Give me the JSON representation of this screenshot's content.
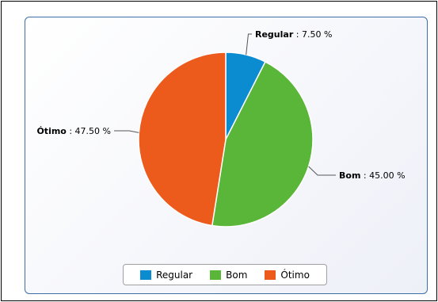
{
  "chart_data": {
    "type": "pie",
    "slices": [
      {
        "label": "Regular",
        "value": 7.5,
        "value_text": "7.50 %",
        "color": "#0b8bd0"
      },
      {
        "label": "Bom",
        "value": 45.0,
        "value_text": "45.00 %",
        "color": "#5ab638"
      },
      {
        "label": "Ótimo",
        "value": 47.5,
        "value_text": "47.50 %",
        "color": "#ec5a1c"
      }
    ],
    "legend_position": "bottom"
  }
}
